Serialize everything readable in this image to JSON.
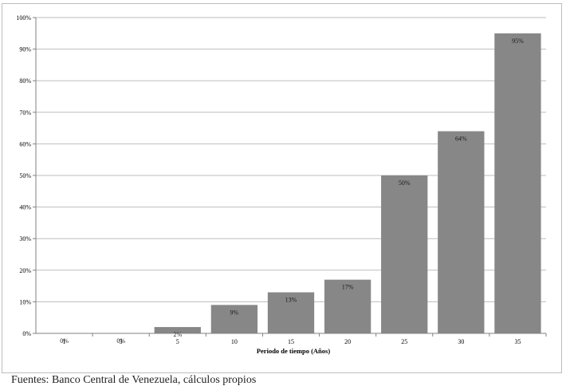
{
  "chart_data": {
    "type": "bar",
    "title": "",
    "xlabel": "Periodo de tiempo  (Años)",
    "ylabel": "",
    "categories": [
      "1",
      "3",
      "5",
      "10",
      "15",
      "20",
      "25",
      "30",
      "35"
    ],
    "values": [
      0,
      0,
      2,
      9,
      13,
      17,
      50,
      64,
      95
    ],
    "data_labels": [
      "0%",
      "0%",
      "2%",
      "9%",
      "13%",
      "17%",
      "50%",
      "64%",
      "95%"
    ],
    "ylim": [
      0,
      100
    ],
    "yticks": [
      "0%",
      "10%",
      "20%",
      "30%",
      "40%",
      "50%",
      "60%",
      "70%",
      "80%",
      "90%",
      "100%"
    ],
    "grid": true,
    "legend": "none",
    "bar_color": "#878787"
  },
  "footnote": "Fuentes: Banco Central de Venezuela, cálculos propios"
}
